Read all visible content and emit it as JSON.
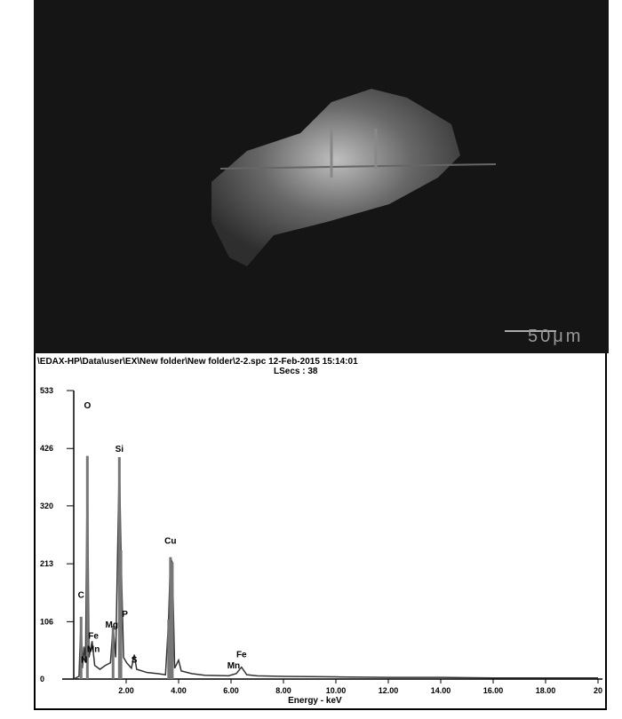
{
  "image": {
    "scale_bar": "50μm"
  },
  "header": {
    "path": "\\EDAX-HP\\Data\\user\\EX\\New folder\\New folder\\2-2.spc  12-Feb-2015 15:14:01",
    "lsecs": "LSecs : 38"
  },
  "chart_data": {
    "type": "line",
    "title": "",
    "xlabel": "Energy - keV",
    "ylabel": "",
    "xlim": [
      0,
      20
    ],
    "ylim": [
      0,
      533
    ],
    "x_ticks": [
      "2.00",
      "4.00",
      "6.00",
      "8.00",
      "10.00",
      "12.00",
      "14.00",
      "16.00",
      "18.00",
      "20"
    ],
    "y_ticks": [
      "0",
      "106",
      "213",
      "320",
      "426",
      "533"
    ],
    "series": [
      {
        "points": [
          [
            0,
            0
          ],
          [
            0.2,
            5
          ],
          [
            0.28,
            115
          ],
          [
            0.33,
            20
          ],
          [
            0.39,
            60
          ],
          [
            0.45,
            30
          ],
          [
            0.52,
            412
          ],
          [
            0.58,
            40
          ],
          [
            0.7,
            70
          ],
          [
            0.8,
            25
          ],
          [
            1.0,
            18
          ],
          [
            1.2,
            25
          ],
          [
            1.4,
            30
          ],
          [
            1.5,
            98
          ],
          [
            1.6,
            40
          ],
          [
            1.74,
            410
          ],
          [
            1.8,
            238
          ],
          [
            1.9,
            40
          ],
          [
            2.02,
            30
          ],
          [
            2.2,
            20
          ],
          [
            2.31,
            45
          ],
          [
            2.4,
            18
          ],
          [
            2.8,
            12
          ],
          [
            3.2,
            10
          ],
          [
            3.5,
            8
          ],
          [
            3.62,
            110
          ],
          [
            3.69,
            225
          ],
          [
            3.76,
            215
          ],
          [
            3.85,
            20
          ],
          [
            4.0,
            35
          ],
          [
            4.1,
            15
          ],
          [
            4.5,
            10
          ],
          [
            5.0,
            7
          ],
          [
            5.9,
            6
          ],
          [
            6.2,
            10
          ],
          [
            6.4,
            22
          ],
          [
            6.6,
            8
          ],
          [
            7.0,
            6
          ],
          [
            8.0,
            5
          ],
          [
            10,
            4
          ],
          [
            12,
            3
          ],
          [
            14,
            3
          ],
          [
            16,
            2
          ],
          [
            18,
            2
          ],
          [
            20,
            2
          ]
        ]
      }
    ],
    "peak_labels": [
      {
        "label": "O",
        "x": 0.52,
        "y": 500
      },
      {
        "label": "Si",
        "x": 1.74,
        "y": 420
      },
      {
        "label": "Cu",
        "x": 3.69,
        "y": 250
      },
      {
        "label": "C",
        "x": 0.28,
        "y": 150
      },
      {
        "label": "Mg",
        "x": 1.45,
        "y": 95
      },
      {
        "label": "P",
        "x": 1.95,
        "y": 115
      },
      {
        "label": "Fe",
        "x": 0.75,
        "y": 75
      },
      {
        "label": "Mn",
        "x": 0.75,
        "y": 50
      },
      {
        "label": "N",
        "x": 0.4,
        "y": 30
      },
      {
        "label": "S",
        "x": 2.31,
        "y": 30
      },
      {
        "label": "Fe",
        "x": 6.4,
        "y": 40
      },
      {
        "label": "Mn",
        "x": 6.1,
        "y": 20
      }
    ],
    "colors": {
      "line": "#333333",
      "peak": "#777777"
    }
  }
}
